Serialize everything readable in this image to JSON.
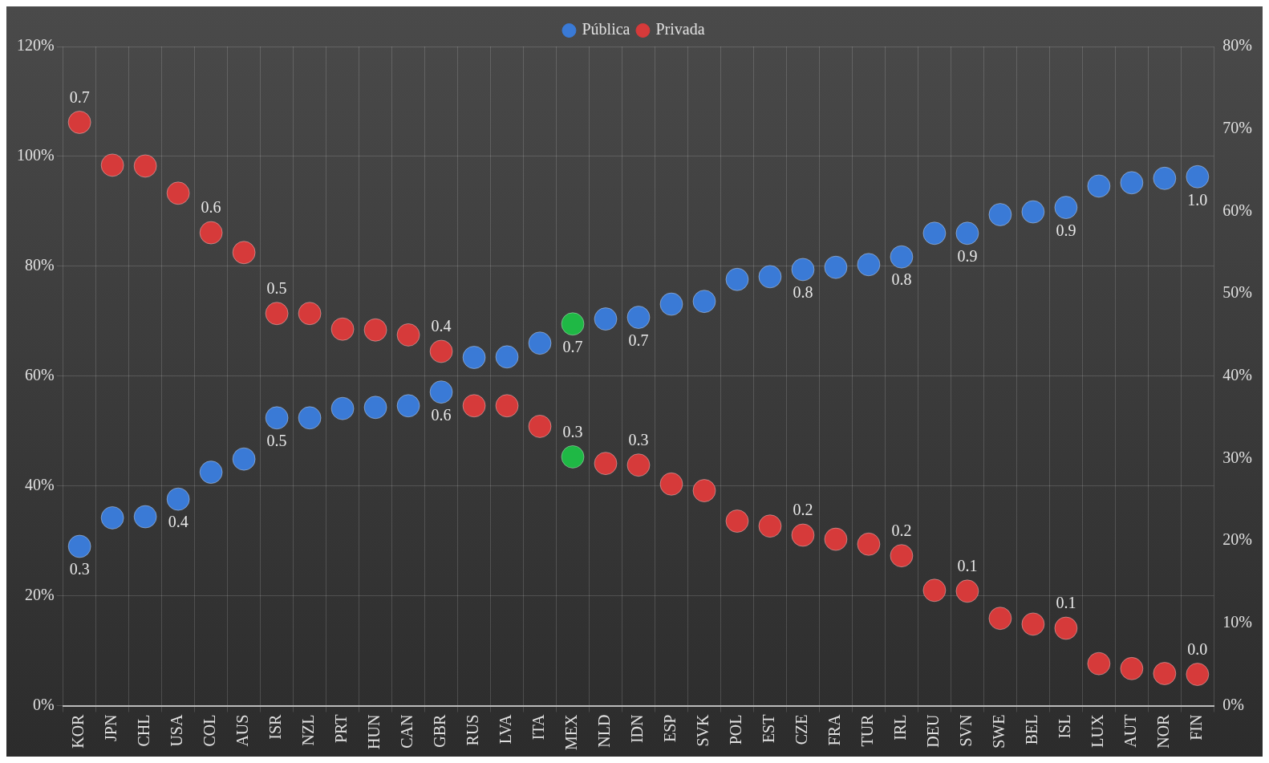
{
  "chart_data": {
    "type": "scatter",
    "legend": "top",
    "grid": true,
    "marker": "circle",
    "categories": [
      "KOR",
      "JPN",
      "CHL",
      "USA",
      "COL",
      "AUS",
      "ISR",
      "NZL",
      "PRT",
      "HUN",
      "CAN",
      "GBR",
      "RUS",
      "LVA",
      "ITA",
      "MEX",
      "NLD",
      "IDN",
      "ESP",
      "SVK",
      "POL",
      "EST",
      "CZE",
      "FRA",
      "TUR",
      "IRL",
      "DEU",
      "SVN",
      "SWE",
      "BEL",
      "ISL",
      "LUX",
      "AUT",
      "NOR",
      "FIN"
    ],
    "ylim": [
      0,
      120
    ],
    "yticks": [
      {
        "value": 0,
        "label": "0%"
      },
      {
        "value": 20,
        "label": "20%"
      },
      {
        "value": 40,
        "label": "40%"
      },
      {
        "value": 60,
        "label": "60%"
      },
      {
        "value": 80,
        "label": "80%"
      },
      {
        "value": 100,
        "label": "100%"
      },
      {
        "value": 120,
        "label": "120%"
      }
    ],
    "y2lim": [
      0,
      80
    ],
    "y2ticks": [
      {
        "value": 0,
        "label": "0%"
      },
      {
        "value": 10,
        "label": "10%"
      },
      {
        "value": 20,
        "label": "20%"
      },
      {
        "value": 30,
        "label": "30%"
      },
      {
        "value": 40,
        "label": "40%"
      },
      {
        "value": 50,
        "label": "50%"
      },
      {
        "value": 60,
        "label": "60%"
      },
      {
        "value": 70,
        "label": "70%"
      },
      {
        "value": 80,
        "label": "80%"
      }
    ],
    "series": [
      {
        "name": "Pública",
        "color": "#3a7ad6",
        "colors": [
          "#3a7ad6",
          "#3a7ad6",
          "#3a7ad6",
          "#3a7ad6",
          "#3a7ad6",
          "#3a7ad6",
          "#3a7ad6",
          "#3a7ad6",
          "#3a7ad6",
          "#3a7ad6",
          "#3a7ad6",
          "#3a7ad6",
          "#3a7ad6",
          "#3a7ad6",
          "#3a7ad6",
          "#1fb845",
          "#3a7ad6",
          "#3a7ad6",
          "#3a7ad6",
          "#3a7ad6",
          "#3a7ad6",
          "#3a7ad6",
          "#3a7ad6",
          "#3a7ad6",
          "#3a7ad6",
          "#3a7ad6",
          "#3a7ad6",
          "#3a7ad6",
          "#3a7ad6",
          "#3a7ad6",
          "#3a7ad6",
          "#3a7ad6",
          "#3a7ad6",
          "#3a7ad6",
          "#3a7ad6"
        ],
        "values": [
          29.0,
          34.2,
          34.4,
          37.6,
          42.5,
          44.9,
          52.4,
          52.4,
          54.1,
          54.3,
          54.6,
          57.1,
          63.4,
          63.5,
          66.0,
          69.5,
          70.4,
          70.7,
          73.1,
          73.6,
          77.6,
          78.1,
          79.4,
          79.8,
          80.3,
          81.7,
          86.0,
          86.0,
          89.4,
          89.9,
          90.7,
          94.6,
          95.2,
          96.0,
          96.3
        ]
      },
      {
        "name": "Privada",
        "color": "#d63a3a",
        "axis": "y2",
        "colors": [
          "#d63a3a",
          "#d63a3a",
          "#d63a3a",
          "#d63a3a",
          "#d63a3a",
          "#d63a3a",
          "#d63a3a",
          "#d63a3a",
          "#d63a3a",
          "#d63a3a",
          "#d63a3a",
          "#d63a3a",
          "#d63a3a",
          "#d63a3a",
          "#d63a3a",
          "#1fb845",
          "#d63a3a",
          "#d63a3a",
          "#d63a3a",
          "#d63a3a",
          "#d63a3a",
          "#d63a3a",
          "#d63a3a",
          "#d63a3a",
          "#d63a3a",
          "#d63a3a",
          "#d63a3a",
          "#d63a3a",
          "#d63a3a",
          "#d63a3a",
          "#d63a3a",
          "#d63a3a",
          "#d63a3a",
          "#d63a3a",
          "#d63a3a"
        ],
        "values": [
          70.8,
          65.6,
          65.5,
          62.2,
          57.4,
          55.0,
          47.6,
          47.6,
          45.7,
          45.6,
          45.0,
          43.0,
          36.4,
          36.4,
          33.9,
          30.2,
          29.4,
          29.2,
          26.9,
          26.1,
          22.4,
          21.8,
          20.7,
          20.2,
          19.6,
          18.2,
          14.0,
          13.9,
          10.6,
          9.9,
          9.4,
          5.1,
          4.5,
          3.9,
          3.8
        ]
      }
    ],
    "annotations": [
      {
        "text": "0.3",
        "x": "KOR",
        "y": 29.0
      },
      {
        "text": "0.4",
        "x": "USA",
        "y": 37.6
      },
      {
        "text": "0.5",
        "x": "ISR",
        "y": 52.4
      },
      {
        "text": "0.6",
        "x": "GBR",
        "y": 57.1
      },
      {
        "text": "0.7",
        "x": "MEX",
        "y": 69.5
      },
      {
        "text": "0.7",
        "x": "IDN",
        "y": 70.7
      },
      {
        "text": "0.8",
        "x": "CZE",
        "y": 79.4
      },
      {
        "text": "0.8",
        "x": "IRL",
        "y": 81.7
      },
      {
        "text": "0.9",
        "x": "SVN",
        "y": 86.0
      },
      {
        "text": "0.9",
        "x": "ISL",
        "y": 90.7
      },
      {
        "text": "1.0",
        "x": "FIN",
        "y": 96.3
      },
      {
        "text": "0.7",
        "x": "KOR",
        "y": 106.2
      },
      {
        "text": "0.6",
        "x": "COL",
        "y": 86.1
      },
      {
        "text": "0.5",
        "x": "ISR",
        "y": 71.4
      },
      {
        "text": "0.4",
        "x": "GBR",
        "y": 64.5
      },
      {
        "text": "0.3",
        "x": "MEX",
        "y": 45.3
      },
      {
        "text": "0.3",
        "x": "IDN",
        "y": 43.8
      },
      {
        "text": "0.2",
        "x": "CZE",
        "y": 31.1
      },
      {
        "text": "0.2",
        "x": "IRL",
        "y": 27.3
      },
      {
        "text": "0.1",
        "x": "SVN",
        "y": 20.9
      },
      {
        "text": "0.1",
        "x": "ISL",
        "y": 14.1
      },
      {
        "text": "0.0",
        "x": "FIN",
        "y": 5.7
      }
    ]
  }
}
